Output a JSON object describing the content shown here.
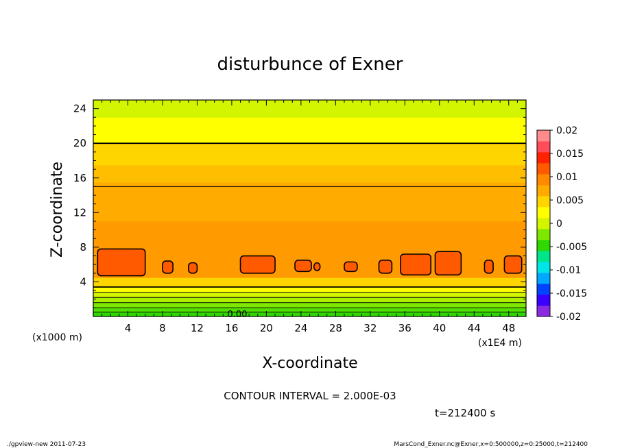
{
  "chart_data": {
    "type": "contour",
    "title": "disturbunce of Exner",
    "xlabel": "X-coordinate",
    "ylabel": "Z-coordinate",
    "x_units": "(x1E4 m)",
    "y_units": "(x1000 m)",
    "xlim": [
      0,
      50
    ],
    "ylim": [
      0,
      25
    ],
    "x_ticks": [
      4,
      8,
      12,
      16,
      20,
      24,
      28,
      32,
      36,
      40,
      44,
      48
    ],
    "y_ticks": [
      4,
      8,
      12,
      16,
      20,
      24
    ],
    "contour_interval_label": "CONTOUR INTERVAL = 2.000E-03",
    "contour_label": "0.00",
    "time_label": "t=212400 s",
    "colorbar": {
      "range": [
        -0.02,
        0.02
      ],
      "tick_labels": [
        "0.02",
        "0.015",
        "0.01",
        "0.005",
        "0",
        "-0.005",
        "-0.01",
        "-0.015",
        "-0.02"
      ],
      "colors": [
        "#8a2be2",
        "#3a00ff",
        "#0044ff",
        "#00a8ff",
        "#00e5e5",
        "#00e58a",
        "#2ed800",
        "#7fe800",
        "#d4f500",
        "#ffff00",
        "#ffd500",
        "#ffab00",
        "#ff8a00",
        "#ff5a00",
        "#ff2200",
        "#ff4c5a",
        "#ff8c8c"
      ]
    },
    "layers": [
      {
        "z_from": 0.0,
        "z_to": 0.5,
        "color": "#2ed800"
      },
      {
        "z_from": 0.5,
        "z_to": 1.0,
        "color": "#52e000"
      },
      {
        "z_from": 1.0,
        "z_to": 1.6,
        "color": "#7fe800"
      },
      {
        "z_from": 1.6,
        "z_to": 2.2,
        "color": "#aaf000"
      },
      {
        "z_from": 2.2,
        "z_to": 2.8,
        "color": "#d4f500"
      },
      {
        "z_from": 2.8,
        "z_to": 3.4,
        "color": "#ffff00"
      },
      {
        "z_from": 3.4,
        "z_to": 4.5,
        "color": "#ffd500"
      },
      {
        "z_from": 4.5,
        "z_to": 11.0,
        "color": "#ff9a00"
      },
      {
        "z_from": 11.0,
        "z_to": 15.5,
        "color": "#ffab00"
      },
      {
        "z_from": 15.5,
        "z_to": 17.5,
        "color": "#ffbf00"
      },
      {
        "z_from": 17.5,
        "z_to": 20.0,
        "color": "#ffd500"
      },
      {
        "z_from": 20.0,
        "z_to": 23.0,
        "color": "#ffff00"
      },
      {
        "z_from": 23.0,
        "z_to": 25.0,
        "color": "#d4f500"
      }
    ],
    "contour_lines_z": [
      0.5,
      1.0,
      1.6,
      2.2,
      2.8,
      3.4,
      15.0,
      20.0
    ],
    "max_cells": [
      {
        "x0": 0.5,
        "x1": 6.0,
        "z0": 4.7,
        "z1": 7.8
      },
      {
        "x0": 8.0,
        "x1": 9.2,
        "z0": 5.0,
        "z1": 6.4
      },
      {
        "x0": 11.0,
        "x1": 12.0,
        "z0": 5.0,
        "z1": 6.2
      },
      {
        "x0": 17.0,
        "x1": 21.0,
        "z0": 5.0,
        "z1": 7.0
      },
      {
        "x0": 23.3,
        "x1": 25.2,
        "z0": 5.2,
        "z1": 6.5
      },
      {
        "x0": 25.5,
        "x1": 26.2,
        "z0": 5.3,
        "z1": 6.2
      },
      {
        "x0": 29.0,
        "x1": 30.5,
        "z0": 5.2,
        "z1": 6.3
      },
      {
        "x0": 33.0,
        "x1": 34.5,
        "z0": 5.0,
        "z1": 6.5
      },
      {
        "x0": 35.5,
        "x1": 39.0,
        "z0": 4.8,
        "z1": 7.2
      },
      {
        "x0": 39.5,
        "x1": 42.5,
        "z0": 4.8,
        "z1": 7.5
      },
      {
        "x0": 45.2,
        "x1": 46.2,
        "z0": 5.0,
        "z1": 6.5
      },
      {
        "x0": 47.5,
        "x1": 49.5,
        "z0": 5.0,
        "z1": 7.0
      }
    ],
    "grid": false,
    "legend": "right colorbar"
  },
  "footer": {
    "left": "./gpview-new  2011-07-23",
    "right": "MarsCond_Exner.nc@Exner,x=0:500000,z=0:25000,t=212400"
  }
}
